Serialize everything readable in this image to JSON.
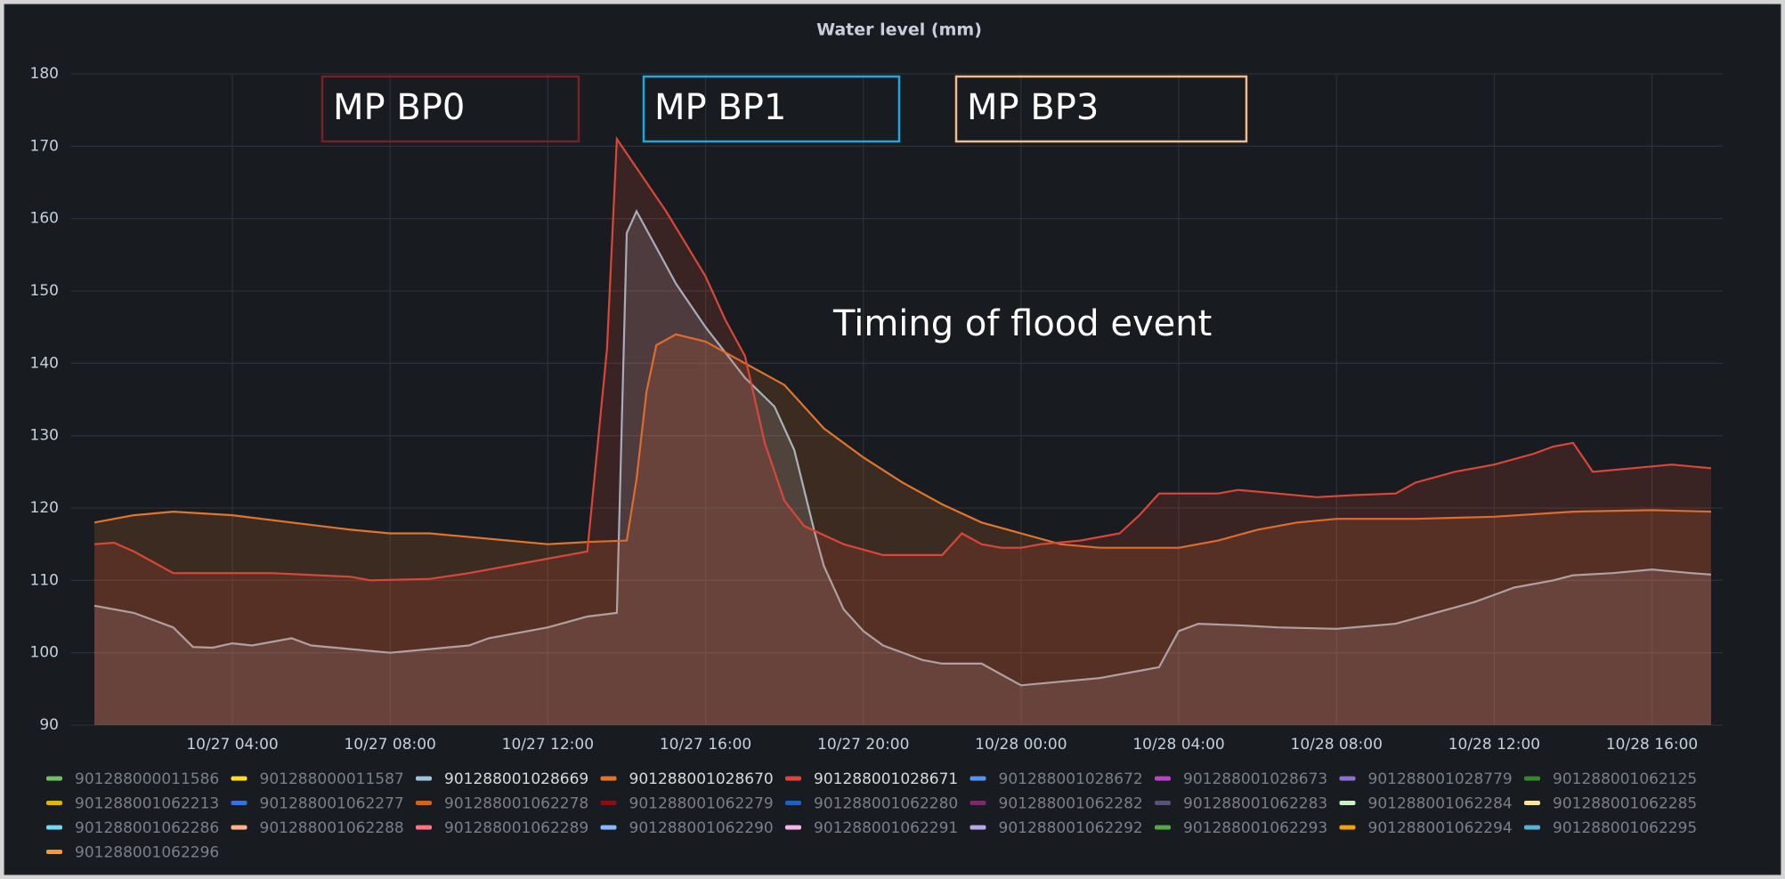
{
  "chart_data": {
    "type": "line",
    "title": "Water level (mm)",
    "xlim": [
      "10/27 00:30",
      "10/28 17:30"
    ],
    "xticks": [
      "10/27 04:00",
      "10/27 08:00",
      "10/27 12:00",
      "10/27 16:00",
      "10/27 20:00",
      "10/28 00:00",
      "10/28 04:00",
      "10/28 08:00",
      "10/28 12:00",
      "10/28 16:00"
    ],
    "ylim": [
      90,
      180
    ],
    "yticks": [
      90,
      100,
      110,
      120,
      130,
      140,
      150,
      160,
      170,
      180
    ],
    "grid": true,
    "fill": true,
    "annotations": [
      {
        "text": "MP BP0",
        "color": "#7a1f25"
      },
      {
        "text": "MP BP1",
        "color": "#1fa7e0"
      },
      {
        "text": "MP BP3",
        "color": "#f5b98a"
      },
      {
        "text": "Timing of flood event"
      }
    ],
    "series": [
      {
        "name": "901288000011586",
        "color": "#73bf69",
        "x": [],
        "values": []
      },
      {
        "name": "901288000011587",
        "color": "#fade2a",
        "x": [],
        "values": []
      },
      {
        "name": "901288001028669",
        "color": "#9ec3d6",
        "x": [
          "10/27 00:30",
          "10/27 01:30",
          "10/27 02:30",
          "10/27 03:00",
          "10/27 03:30",
          "10/27 04:00",
          "10/27 04:30",
          "10/27 05:30",
          "10/27 06:00",
          "10/27 07:00",
          "10/27 08:00",
          "10/27 09:00",
          "10/27 10:00",
          "10/27 10:30",
          "10/27 12:00",
          "10/27 13:00",
          "10/27 13:45",
          "10/27 14:00",
          "10/27 14:15",
          "10/27 14:45",
          "10/27 15:15",
          "10/27 16:00",
          "10/27 17:00",
          "10/27 17:45",
          "10/27 18:15",
          "10/27 18:45",
          "10/27 19:00",
          "10/27 19:30",
          "10/27 20:00",
          "10/27 20:30",
          "10/27 21:30",
          "10/27 22:00",
          "10/27 23:00",
          "10/27 23:30",
          "10/28 00:00",
          "10/28 01:00",
          "10/28 02:00",
          "10/28 03:00",
          "10/28 03:30",
          "10/28 04:00",
          "10/28 04:30",
          "10/28 05:30",
          "10/28 06:30",
          "10/28 08:00",
          "10/28 09:30",
          "10/28 10:30",
          "10/28 11:30",
          "10/28 12:00",
          "10/28 12:30",
          "10/28 13:30",
          "10/28 14:00",
          "10/28 15:00",
          "10/28 16:00",
          "10/28 17:00",
          "10/28 17:30"
        ],
        "values": [
          106.5,
          105.5,
          103.5,
          100.8,
          100.7,
          101.3,
          101,
          102,
          101,
          100.5,
          100,
          100.5,
          101,
          102,
          103.5,
          105,
          105.5,
          158,
          161,
          156,
          151,
          145,
          138,
          134,
          128,
          117,
          112,
          106,
          103,
          101,
          99,
          98.5,
          98.5,
          97,
          95.5,
          96,
          96.5,
          97.5,
          98,
          103,
          104,
          103.8,
          103.5,
          103.3,
          104,
          105.5,
          107,
          108,
          109,
          110,
          110.7,
          111,
          111.5,
          111,
          110.8
        ]
      },
      {
        "name": "901288001028670",
        "color": "#e0752d",
        "x": [
          "10/27 00:30",
          "10/27 01:30",
          "10/27 02:30",
          "10/27 04:00",
          "10/27 05:30",
          "10/27 07:00",
          "10/27 08:00",
          "10/27 09:00",
          "10/27 11:00",
          "10/27 12:00",
          "10/27 13:00",
          "10/27 14:00",
          "10/27 14:15",
          "10/27 14:30",
          "10/27 14:45",
          "10/27 15:15",
          "10/27 16:00",
          "10/27 17:00",
          "10/27 18:00",
          "10/27 19:00",
          "10/27 20:00",
          "10/27 21:00",
          "10/27 22:00",
          "10/27 23:00",
          "10/28 00:00",
          "10/28 01:00",
          "10/28 02:00",
          "10/28 03:00",
          "10/28 04:00",
          "10/28 05:00",
          "10/28 06:00",
          "10/28 07:00",
          "10/28 08:00",
          "10/28 10:00",
          "10/28 12:00",
          "10/28 14:00",
          "10/28 16:00",
          "10/28 17:30"
        ],
        "values": [
          118,
          119,
          119.5,
          119,
          118,
          117,
          116.5,
          116.5,
          115.5,
          115,
          115.3,
          115.5,
          124,
          136,
          142.5,
          144,
          143,
          140,
          137,
          131,
          127,
          123.5,
          120.5,
          118,
          116.5,
          115,
          114.5,
          114.5,
          114.5,
          115.5,
          117,
          118,
          118.5,
          118.5,
          118.8,
          119.5,
          119.7,
          119.5
        ]
      },
      {
        "name": "901288001028671",
        "color": "#d9473a",
        "x": [
          "10/27 00:30",
          "10/27 01:00",
          "10/27 01:30",
          "10/27 02:00",
          "10/27 02:30",
          "10/27 03:00",
          "10/27 05:00",
          "10/27 07:00",
          "10/27 07:30",
          "10/27 09:00",
          "10/27 10:00",
          "10/27 11:30",
          "10/27 12:30",
          "10/27 13:00",
          "10/27 13:30",
          "10/27 13:45",
          "10/27 14:15",
          "10/27 15:00",
          "10/27 15:30",
          "10/27 16:00",
          "10/27 16:30",
          "10/27 17:00",
          "10/27 17:30",
          "10/27 18:00",
          "10/27 18:30",
          "10/27 19:30",
          "10/27 20:30",
          "10/27 22:00",
          "10/27 22:30",
          "10/27 23:00",
          "10/27 23:30",
          "10/28 00:00",
          "10/28 00:30",
          "10/28 01:30",
          "10/28 02:30",
          "10/28 03:00",
          "10/28 03:30",
          "10/28 05:00",
          "10/28 05:30",
          "10/28 06:30",
          "10/28 07:30",
          "10/28 08:30",
          "10/28 09:30",
          "10/28 10:00",
          "10/28 11:00",
          "10/28 12:00",
          "10/28 13:00",
          "10/28 13:30",
          "10/28 14:00",
          "10/28 14:30",
          "10/28 15:30",
          "10/28 16:30",
          "10/28 17:30"
        ],
        "values": [
          115,
          115.2,
          114,
          112.5,
          111,
          111,
          111,
          110.5,
          110,
          110.2,
          111,
          112.5,
          113.5,
          114,
          142,
          171,
          167,
          161,
          156.5,
          152,
          146,
          141,
          129,
          121,
          117.5,
          115,
          113.5,
          113.5,
          116.5,
          115,
          114.5,
          114.5,
          115,
          115.5,
          116.5,
          119,
          122,
          122,
          122.5,
          122,
          121.5,
          121.8,
          122,
          123.5,
          125,
          126,
          127.5,
          128.5,
          129,
          125,
          125.5,
          126,
          125.5
        ]
      },
      {
        "name": "901288001028672",
        "color": "#5794f2",
        "x": [],
        "values": []
      },
      {
        "name": "901288001028673",
        "color": "#b844c9",
        "x": [],
        "values": []
      },
      {
        "name": "901288001028779",
        "color": "#8f6fd0",
        "x": [],
        "values": []
      },
      {
        "name": "901288001062125",
        "color": "#37872d",
        "x": [],
        "values": []
      },
      {
        "name": "901288001062213",
        "color": "#e0b400",
        "x": [],
        "values": []
      },
      {
        "name": "901288001062277",
        "color": "#3274d9",
        "x": [],
        "values": []
      },
      {
        "name": "901288001062278",
        "color": "#d9621a",
        "x": [],
        "values": []
      },
      {
        "name": "901288001062279",
        "color": "#8a1010",
        "x": [],
        "values": []
      },
      {
        "name": "901288001062280",
        "color": "#1f60c4",
        "x": [],
        "values": []
      },
      {
        "name": "901288001062282",
        "color": "#7a2a6e",
        "x": [],
        "values": []
      },
      {
        "name": "901288001062283",
        "color": "#5a4f7a",
        "x": [],
        "values": []
      },
      {
        "name": "901288001062284",
        "color": "#c8f2c2",
        "x": [],
        "values": []
      },
      {
        "name": "901288001062285",
        "color": "#fce2a0",
        "x": [],
        "values": []
      },
      {
        "name": "901288001062286",
        "color": "#73d8f0",
        "x": [],
        "values": []
      },
      {
        "name": "901288001062288",
        "color": "#ffb38a",
        "x": [],
        "values": []
      },
      {
        "name": "901288001062289",
        "color": "#ff7383",
        "x": [],
        "values": []
      },
      {
        "name": "901288001062290",
        "color": "#8ab8ff",
        "x": [],
        "values": []
      },
      {
        "name": "901288001062291",
        "color": "#f4b8e8",
        "x": [],
        "values": []
      },
      {
        "name": "901288001062292",
        "color": "#b8a8e8",
        "x": [],
        "values": []
      },
      {
        "name": "901288001062293",
        "color": "#56a64b",
        "x": [],
        "values": []
      },
      {
        "name": "901288001062294",
        "color": "#f2a00c",
        "x": [],
        "values": []
      },
      {
        "name": "901288001062295",
        "color": "#5bb0d8",
        "x": [],
        "values": []
      },
      {
        "name": "901288001062296",
        "color": "#ff9830",
        "x": [],
        "values": []
      }
    ]
  }
}
